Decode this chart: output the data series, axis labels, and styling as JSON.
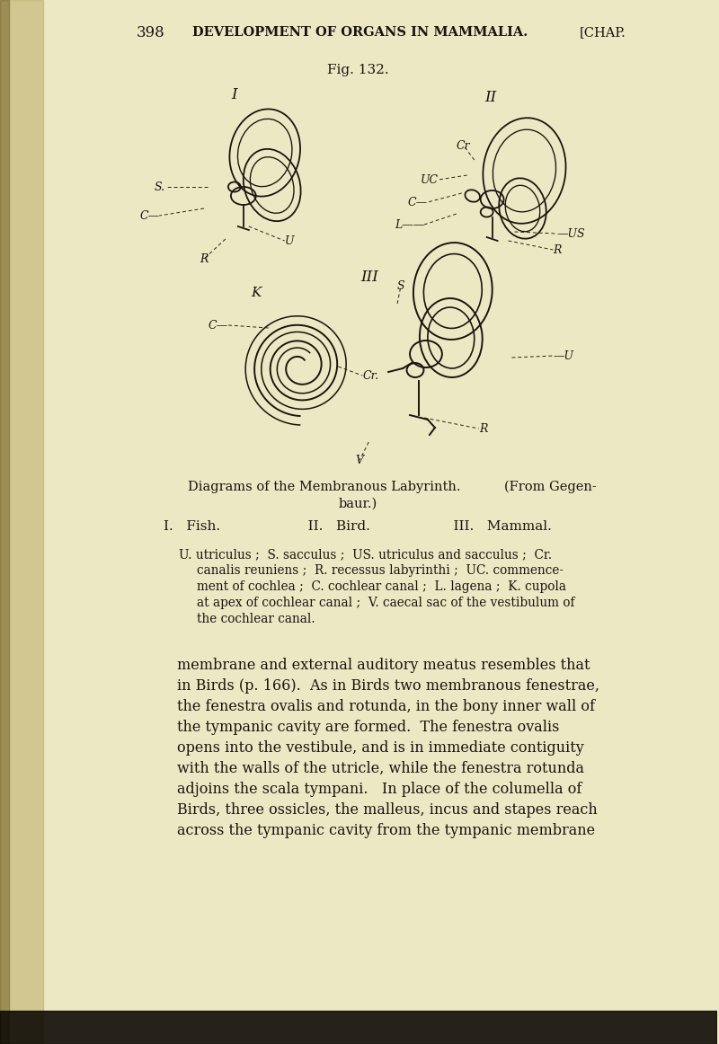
{
  "bg_color": "#ede8c4",
  "header_num": "398",
  "header_main": "DEVELOPMENT OF ORGANS IN MAMMALIA.",
  "header_chap": "[CHAP.",
  "fig_label": "Fig. 132.",
  "caption_line1": "Diagrams of the Membranous Labyrinth.  (From Gegen-",
  "caption_line2": "baur.)",
  "roman_line": "I.   Fish.                    II.   Bird.                   III.   Mammal.",
  "legend_lines": [
    "U. utriculus ;  S. sacculus ;  US. utriculus and sacculus ;  Cr.",
    "canalis reuniens ;  R. recessus labyrinthi ;  UC. commence-",
    "ment of cochlea ;  C. cochlear canal ;  L. lagena ;  K. cupola",
    "at apex of cochlear canal ;  V. caecal sac of the vestibulum of",
    "the cochlear canal."
  ],
  "body_lines": [
    "membrane and external auditory meatus resembles that",
    "in Birds (p. 166).  As in Birds two membranous fenestrae,",
    "the fenestra ovalis and rotunda, in the bony inner wall of",
    "the tympanic cavity are formed.  The fenestra ovalis",
    "opens into the vestibule, and is in immediate contiguity",
    "with the walls of the utricle, while the fenestra rotunda",
    "adjoins the scala tympani.   In place of the columella of",
    "Birds, three ossicles, the malleus, incus and stapes reach",
    "across the tympanic cavity from the tympanic membrane"
  ],
  "ink_color": "#1a1410",
  "dash_color": "#2a2018",
  "spine_color": "#b8a860",
  "spine_dark": "#7a6830",
  "bottom_color": "#100c06"
}
